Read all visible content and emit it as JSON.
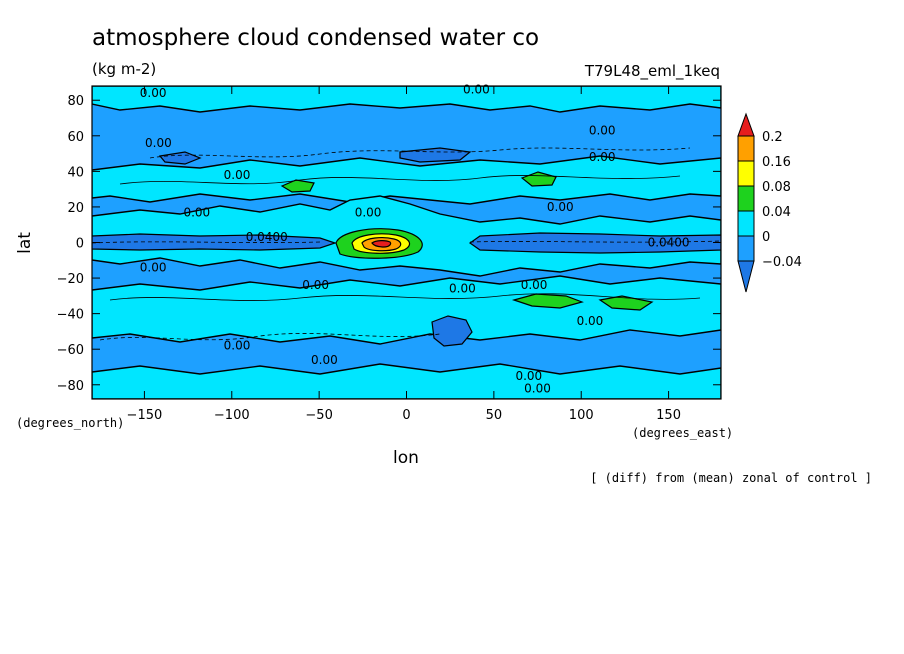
{
  "title": "atmosphere cloud condensed water co",
  "units": "(kg m-2)",
  "experiment": "T79L48_eml_1keq",
  "footnote": "[ (diff) from (mean) zonal of control ]",
  "colors": {
    "below_neg004": "#1e78e6",
    "neg004_to_0": "#1ea0ff",
    "0_to_004": "#00e6ff",
    "004_to_008": "#1ed21e",
    "008_to_016": "#ffff00",
    "016_to_02": "#ffa000",
    "above_02": "#e61e1e"
  },
  "chart_data": {
    "type": "heatmap",
    "title": "atmosphere cloud condensed water co",
    "xlabel": "lon",
    "ylabel": "lat",
    "x_units_label": "(degrees_east)",
    "y_units_label": "(degrees_north)",
    "xlim": [
      -180,
      180
    ],
    "ylim": [
      -88,
      88
    ],
    "x_ticks": [
      -150,
      -100,
      -50,
      0,
      50,
      100,
      150
    ],
    "y_ticks": [
      80,
      60,
      40,
      20,
      0,
      -20,
      -40,
      -60,
      -80
    ],
    "colorbar": {
      "levels": [
        -0.04,
        0,
        0.04,
        0.08,
        0.16,
        0.2
      ],
      "labels": [
        "0.2",
        "0.16",
        "0.08",
        "0.04",
        "0",
        "-0.04"
      ],
      "extend": "both"
    },
    "contour_labels": [
      {
        "text": "0.00",
        "lon": -145,
        "lat": 84
      },
      {
        "text": "0.00",
        "lon": 40,
        "lat": 86
      },
      {
        "text": "0.00",
        "lon": -142,
        "lat": 56
      },
      {
        "text": "0.00",
        "lon": 112,
        "lat": 63
      },
      {
        "text": "0.00",
        "lon": 112,
        "lat": 48
      },
      {
        "text": "0.00",
        "lon": -97,
        "lat": 38
      },
      {
        "text": "0.00",
        "lon": -120,
        "lat": 17
      },
      {
        "text": "0.00",
        "lon": -22,
        "lat": 17
      },
      {
        "text": "0.00",
        "lon": 88,
        "lat": 20
      },
      {
        "text": "0.0400",
        "lon": -80,
        "lat": 3
      },
      {
        "text": "0.0400",
        "lon": 150,
        "lat": 0
      },
      {
        "text": "0.00",
        "lon": -145,
        "lat": -14
      },
      {
        "text": "0.00",
        "lon": -52,
        "lat": -24
      },
      {
        "text": "0.00",
        "lon": 32,
        "lat": -26
      },
      {
        "text": "0.00",
        "lon": 73,
        "lat": -24
      },
      {
        "text": "0.00",
        "lon": 105,
        "lat": -44
      },
      {
        "text": "0.00",
        "lon": -97,
        "lat": -58
      },
      {
        "text": "0.00",
        "lon": -47,
        "lat": -66
      },
      {
        "text": "0.00",
        "lon": 70,
        "lat": -75
      },
      {
        "text": "0.00",
        "lon": 75,
        "lat": -82
      }
    ]
  }
}
